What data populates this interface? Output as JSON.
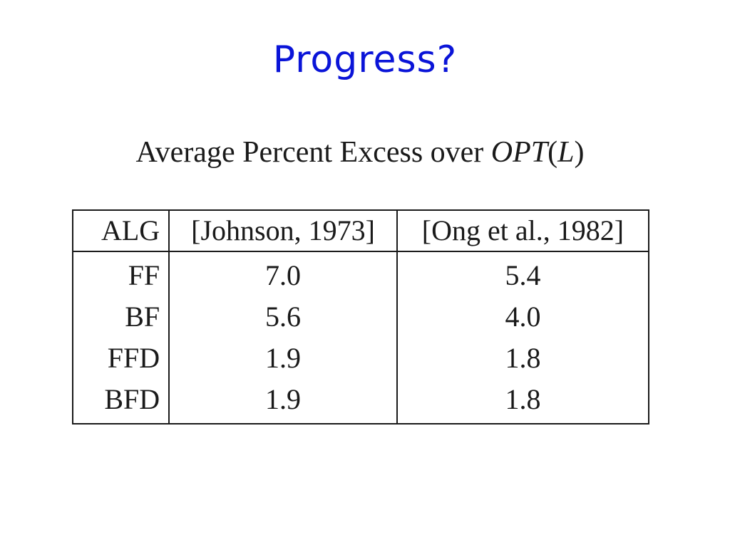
{
  "slide": {
    "title": "Progress?"
  },
  "caption": {
    "text": "Average Percent Excess over ",
    "math_name": "OPT",
    "math_open": "(",
    "math_arg": "L",
    "math_close": ")"
  },
  "table": {
    "headers": [
      "ALG",
      "[Johnson, 1973]",
      "[Ong et al., 1982]"
    ],
    "rows": [
      {
        "alg": "FF",
        "johnson": "7.0",
        "ong": "5.4"
      },
      {
        "alg": "BF",
        "johnson": "5.6",
        "ong": "4.0"
      },
      {
        "alg": "FFD",
        "johnson": "1.9",
        "ong": "1.8"
      },
      {
        "alg": "BFD",
        "johnson": "1.9",
        "ong": "1.8"
      }
    ]
  }
}
